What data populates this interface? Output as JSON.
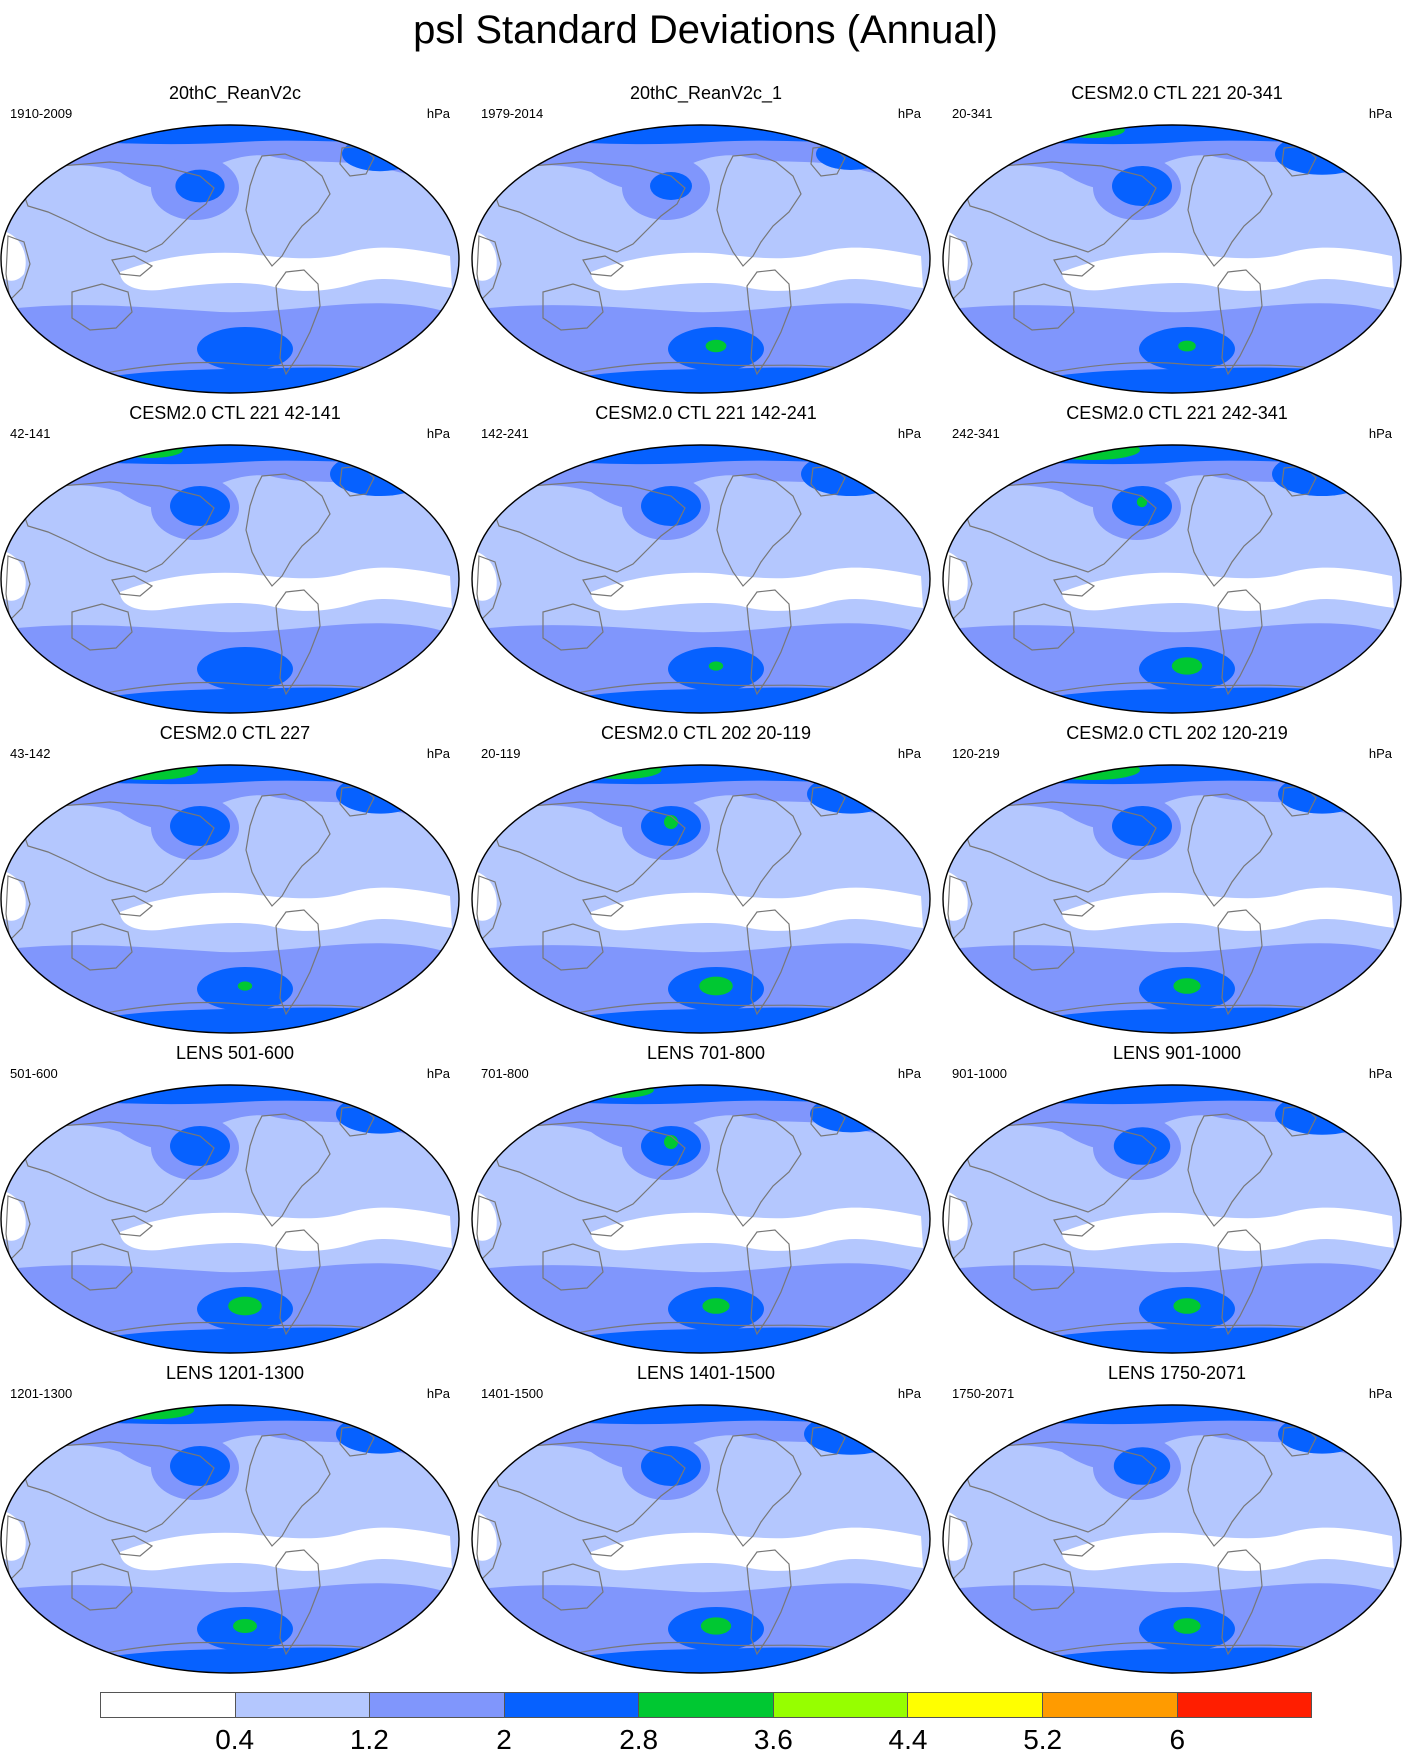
{
  "title": "psl Standard Deviations (Annual)",
  "colors": {
    "levels": [
      "#ffffff",
      "#b4c7fe",
      "#8096fc",
      "#0661ff",
      "#00c832",
      "#96ff00",
      "#ffff00",
      "#ff9b00",
      "#ff1e00"
    ],
    "coast": "#777777",
    "border": "#000000"
  },
  "colorbar": {
    "labels": [
      "0.4",
      "1.2",
      "2",
      "2.8",
      "3.6",
      "4.4",
      "5.2",
      "6"
    ]
  },
  "panels": [
    {
      "title": "20thC_ReanV2c",
      "left": "1910-2009",
      "right": "hPa",
      "arctic_green": 0,
      "nwpac_dark": 0.7,
      "nwpac_green": 0,
      "so_green": 0,
      "atl_dark": 0.6
    },
    {
      "title": "20thC_ReanV2c_1",
      "left": "1979-2014",
      "right": "hPa",
      "arctic_green": 0,
      "nwpac_dark": 0.5,
      "nwpac_green": 0,
      "so_green": 0.4,
      "atl_dark": 0.5
    },
    {
      "title": "CESM2.0 CTL 221 20-341",
      "left": "20-341",
      "right": "hPa",
      "arctic_green": 0.6,
      "nwpac_dark": 1,
      "nwpac_green": 0,
      "so_green": 0.3,
      "atl_dark": 0.9
    },
    {
      "title": "CESM2.0 CTL 221 42-141",
      "left": "42-141",
      "right": "hPa",
      "arctic_green": 0.6,
      "nwpac_dark": 1,
      "nwpac_green": 0,
      "so_green": 0,
      "atl_dark": 1
    },
    {
      "title": "CESM2.0 CTL 221 142-241",
      "left": "142-241",
      "right": "hPa",
      "arctic_green": 0,
      "nwpac_dark": 1,
      "nwpac_green": 0,
      "so_green": 0.2,
      "atl_dark": 1
    },
    {
      "title": "CESM2.0 CTL 221 242-341",
      "left": "242-341",
      "right": "hPa",
      "arctic_green": 1,
      "nwpac_dark": 1,
      "nwpac_green": 0.2,
      "so_green": 0.7,
      "atl_dark": 1
    },
    {
      "title": "CESM2.0 CTL 227",
      "left": "43-142",
      "right": "hPa",
      "arctic_green": 1,
      "nwpac_dark": 1,
      "nwpac_green": 0,
      "so_green": 0.2,
      "atl_dark": 0.8
    },
    {
      "title": "CESM2.0 CTL 202 20-119",
      "left": "20-119",
      "right": "hPa",
      "arctic_green": 0.8,
      "nwpac_dark": 1,
      "nwpac_green": 0.5,
      "so_green": 0.8,
      "atl_dark": 0.8
    },
    {
      "title": "CESM2.0 CTL 202 120-219",
      "left": "120-219",
      "right": "hPa",
      "arctic_green": 1,
      "nwpac_dark": 1,
      "nwpac_green": 0,
      "so_green": 0.6,
      "atl_dark": 0.8
    },
    {
      "title": "LENS 501-600",
      "left": "501-600",
      "right": "hPa",
      "arctic_green": 0,
      "nwpac_dark": 1,
      "nwpac_green": 0,
      "so_green": 0.8,
      "atl_dark": 0.8
    },
    {
      "title": "LENS 701-800",
      "left": "701-800",
      "right": "hPa",
      "arctic_green": 0.6,
      "nwpac_dark": 1,
      "nwpac_green": 0.5,
      "so_green": 0.6,
      "atl_dark": 0.7
    },
    {
      "title": "LENS 901-1000",
      "left": "901-1000",
      "right": "hPa",
      "arctic_green": 0,
      "nwpac_dark": 0.9,
      "nwpac_green": 0,
      "so_green": 0.6,
      "atl_dark": 0.9
    },
    {
      "title": "LENS 1201-1300",
      "left": "1201-1300",
      "right": "hPa",
      "arctic_green": 0.9,
      "nwpac_dark": 1,
      "nwpac_green": 0,
      "so_green": 0.5,
      "atl_dark": 0.8
    },
    {
      "title": "LENS 1401-1500",
      "left": "1401-1500",
      "right": "hPa",
      "arctic_green": 0,
      "nwpac_dark": 1,
      "nwpac_green": 0,
      "so_green": 0.7,
      "atl_dark": 0.9
    },
    {
      "title": "LENS 1750-2071",
      "left": "1750-2071",
      "right": "hPa",
      "arctic_green": 0,
      "nwpac_dark": 0.9,
      "nwpac_green": 0,
      "so_green": 0.6,
      "atl_dark": 0.8
    }
  ]
}
